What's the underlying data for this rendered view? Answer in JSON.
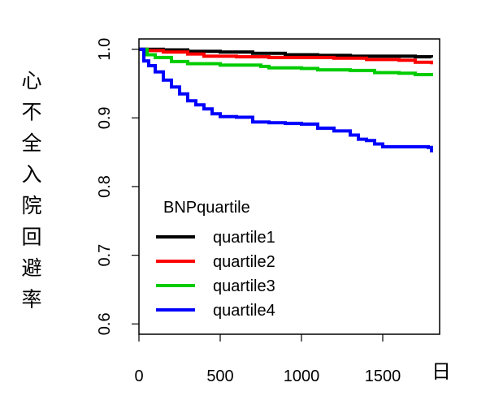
{
  "chart_data": {
    "type": "line",
    "title": "",
    "ylabel": "心不全入院回避率",
    "xlabel": "日",
    "xlim": [
      0,
      1850
    ],
    "ylim": [
      0.585,
      1.015
    ],
    "xticks": [
      "0",
      "500",
      "1000",
      "1500"
    ],
    "yticks": [
      "0.6",
      "0.7",
      "0.8",
      "0.9",
      "1.0"
    ],
    "grid": false,
    "legend": {
      "title": "BNPquartile",
      "placement": "lower-left"
    },
    "series": [
      {
        "name": "quartile1",
        "color": "#000000",
        "points": [
          [
            0,
            1.0
          ],
          [
            150,
            0.999
          ],
          [
            300,
            0.997
          ],
          [
            500,
            0.996
          ],
          [
            700,
            0.994
          ],
          [
            900,
            0.992
          ],
          [
            1100,
            0.991
          ],
          [
            1300,
            0.99
          ],
          [
            1500,
            0.99
          ],
          [
            1700,
            0.989
          ],
          [
            1800,
            0.988
          ]
        ]
      },
      {
        "name": "quartile2",
        "color": "#ff0000",
        "points": [
          [
            0,
            1.0
          ],
          [
            50,
            0.998
          ],
          [
            150,
            0.996
          ],
          [
            300,
            0.993
          ],
          [
            400,
            0.99
          ],
          [
            600,
            0.989
          ],
          [
            800,
            0.988
          ],
          [
            1000,
            0.988
          ],
          [
            1200,
            0.987
          ],
          [
            1400,
            0.985
          ],
          [
            1600,
            0.984
          ],
          [
            1700,
            0.981
          ],
          [
            1800,
            0.978
          ]
        ]
      },
      {
        "name": "quartile3",
        "color": "#00cc00",
        "points": [
          [
            0,
            1.0
          ],
          [
            50,
            0.992
          ],
          [
            100,
            0.988
          ],
          [
            200,
            0.982
          ],
          [
            300,
            0.979
          ],
          [
            500,
            0.977
          ],
          [
            700,
            0.977
          ],
          [
            750,
            0.975
          ],
          [
            800,
            0.973
          ],
          [
            1000,
            0.972
          ],
          [
            1100,
            0.97
          ],
          [
            1300,
            0.969
          ],
          [
            1450,
            0.966
          ],
          [
            1600,
            0.965
          ],
          [
            1700,
            0.963
          ],
          [
            1800,
            0.961
          ]
        ]
      },
      {
        "name": "quartile4",
        "color": "#0000ff",
        "points": [
          [
            0,
            1.0
          ],
          [
            30,
            0.983
          ],
          [
            60,
            0.976
          ],
          [
            100,
            0.967
          ],
          [
            150,
            0.955
          ],
          [
            200,
            0.945
          ],
          [
            250,
            0.935
          ],
          [
            300,
            0.925
          ],
          [
            350,
            0.919
          ],
          [
            400,
            0.913
          ],
          [
            450,
            0.906
          ],
          [
            500,
            0.902
          ],
          [
            600,
            0.901
          ],
          [
            700,
            0.894
          ],
          [
            800,
            0.893
          ],
          [
            900,
            0.892
          ],
          [
            1000,
            0.891
          ],
          [
            1100,
            0.885
          ],
          [
            1200,
            0.881
          ],
          [
            1300,
            0.875
          ],
          [
            1350,
            0.869
          ],
          [
            1400,
            0.867
          ],
          [
            1450,
            0.862
          ],
          [
            1500,
            0.858
          ],
          [
            1600,
            0.858
          ],
          [
            1700,
            0.858
          ],
          [
            1780,
            0.857
          ],
          [
            1800,
            0.85
          ]
        ]
      }
    ]
  }
}
